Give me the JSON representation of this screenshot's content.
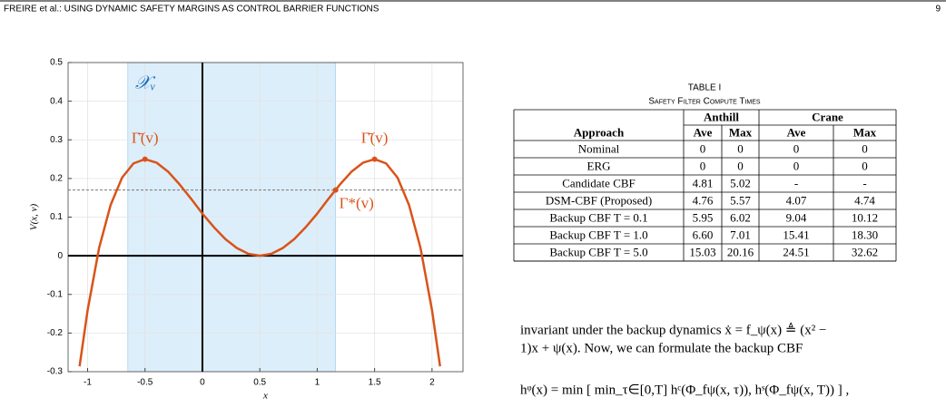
{
  "header": {
    "title": "FREIRE et al.: USING DYNAMIC SAFETY MARGINS AS CONTROL BARRIER FUNCTIONS",
    "page": "9"
  },
  "chart_data": {
    "type": "line",
    "color": "#d95319",
    "x": [
      -1.07,
      -1.0,
      -0.9,
      -0.8,
      -0.7,
      -0.6,
      -0.5,
      -0.4,
      -0.3,
      -0.2,
      -0.1,
      0,
      0.1,
      0.2,
      0.3,
      0.4,
      0.5,
      0.6,
      0.7,
      0.8,
      0.9,
      1.0,
      1.1,
      1.2,
      1.3,
      1.4,
      1.5,
      1.6,
      1.7,
      1.8,
      1.9,
      2.0,
      2.07
    ],
    "values": [
      -0.286,
      -0.141,
      0.02,
      0.131,
      0.202,
      0.239,
      0.25,
      0.241,
      0.218,
      0.185,
      0.148,
      0.109,
      0.074,
      0.043,
      0.02,
      0.005,
      0,
      0.005,
      0.02,
      0.043,
      0.074,
      0.109,
      0.148,
      0.185,
      0.218,
      0.241,
      0.25,
      0.239,
      0.202,
      0.131,
      0.02,
      -0.141,
      -0.286
    ],
    "xlim": [
      -1.17,
      2.27
    ],
    "ylim": [
      -0.3,
      0.5
    ],
    "xticks": [
      -1,
      -0.5,
      0,
      0.5,
      1,
      1.5,
      2
    ],
    "yticks": [
      -0.3,
      -0.2,
      -0.1,
      0,
      0.1,
      0.2,
      0.3,
      0.4,
      0.5
    ],
    "grid": true,
    "xlabel": "x",
    "ylabel": "V(x, v)",
    "region": {
      "x": [
        -0.65,
        1.16
      ],
      "label": "𝒳ᵥ",
      "color": "#dceefa"
    },
    "hline": 0.17,
    "points": [
      {
        "x": -0.5,
        "y": 0.25,
        "label": "Γ̄(v)"
      },
      {
        "x": 1.5,
        "y": 0.25,
        "label": "Γ̄(v)"
      },
      {
        "x": 1.16,
        "y": 0.17,
        "label": "Γ*(v)"
      }
    ]
  },
  "table": {
    "title": "TABLE I",
    "subtitle": "Safety Filter Compute Times",
    "groups": [
      "Anthill",
      "Crane"
    ],
    "columns": [
      "Approach",
      "Ave",
      "Max",
      "Ave",
      "Max"
    ],
    "rows": [
      [
        "Nominal",
        "0",
        "0",
        "0",
        "0"
      ],
      [
        "ERG",
        "0",
        "0",
        "0",
        "0"
      ],
      [
        "Candidate CBF",
        "4.81",
        "5.02",
        "-",
        "-"
      ],
      [
        "DSM-CBF (Proposed)",
        "4.76",
        "5.57",
        "4.07",
        "4.74"
      ],
      [
        "Backup CBF T = 0.1",
        "5.95",
        "6.02",
        "9.04",
        "10.12"
      ],
      [
        "Backup CBF T = 1.0",
        "6.60",
        "7.01",
        "15.41",
        "18.30"
      ],
      [
        "Backup CBF T = 5.0",
        "15.03",
        "20.16",
        "24.51",
        "32.62"
      ]
    ]
  },
  "text": {
    "lines": [
      "invariant under the backup dynamics ẋ = f_ψ(x) ≜ (x² −",
      "1)x + ψ(x). Now, we can formulate the backup CBF"
    ],
    "equation": "hᵠ(x) = min [ min_τ∈[0,T] hᶜ(Φ_fψ(x, τ)), hˢ(Φ_fψ(x, T)) ] ,"
  }
}
